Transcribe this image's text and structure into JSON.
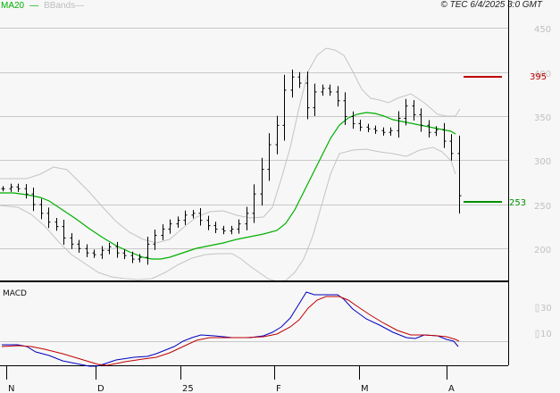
{
  "header": {
    "legend": [
      {
        "label": "MA20",
        "color": "#00b000"
      },
      {
        "label": "BBands",
        "color": "#bdbdbd"
      }
    ],
    "copyright": "© TEC 6/4/2025 3:0 GMT"
  },
  "chart_data": [
    {
      "type": "ohlc",
      "title": "",
      "panel": "price",
      "y_ticks": [
        200,
        250,
        300,
        350,
        400,
        450
      ],
      "ylim": [
        165,
        470
      ],
      "grid": true,
      "x_ticks": [
        "N",
        "D",
        "25",
        "F",
        "M",
        "A"
      ],
      "overlays": [
        {
          "name": "MA20",
          "color": "#00b000"
        },
        {
          "name": "BBands",
          "color": "#bdbdbd"
        }
      ],
      "annotations": [
        {
          "label": "395",
          "value": 395,
          "color": "#c00000",
          "type": "resistance"
        },
        {
          "label": "253",
          "value": 253,
          "color": "#009000",
          "type": "support"
        }
      ],
      "approx_closes": [
        268,
        270,
        268,
        262,
        250,
        240,
        230,
        225,
        212,
        205,
        200,
        195,
        193,
        198,
        202,
        195,
        192,
        188,
        190,
        205,
        215,
        222,
        228,
        232,
        238,
        240,
        232,
        226,
        222,
        220,
        222,
        228,
        240,
        262,
        290,
        318,
        340,
        380,
        395,
        388,
        360,
        378,
        382,
        378,
        368,
        350,
        342,
        338,
        336,
        334,
        332,
        334,
        348,
        362,
        352,
        340,
        332,
        335,
        322,
        308,
        260
      ]
    },
    {
      "type": "line",
      "title": "MACD",
      "panel": "macd",
      "y_ticks": [
        "10",
        "30"
      ],
      "series": [
        {
          "name": "MACD",
          "color": "#0000c0"
        },
        {
          "name": "Signal",
          "color": "#c00000"
        }
      ]
    }
  ],
  "price_axis": {
    "labels": [
      "450",
      "400",
      "350",
      "300",
      "250",
      "200"
    ],
    "resistance_label": "395",
    "support_label": "253"
  },
  "macd_axis": {
    "label": "MACD",
    "ticks": [
      "30",
      "10"
    ]
  },
  "x_axis": {
    "labels": [
      "N",
      "D",
      "25",
      "F",
      "M",
      "A"
    ]
  }
}
